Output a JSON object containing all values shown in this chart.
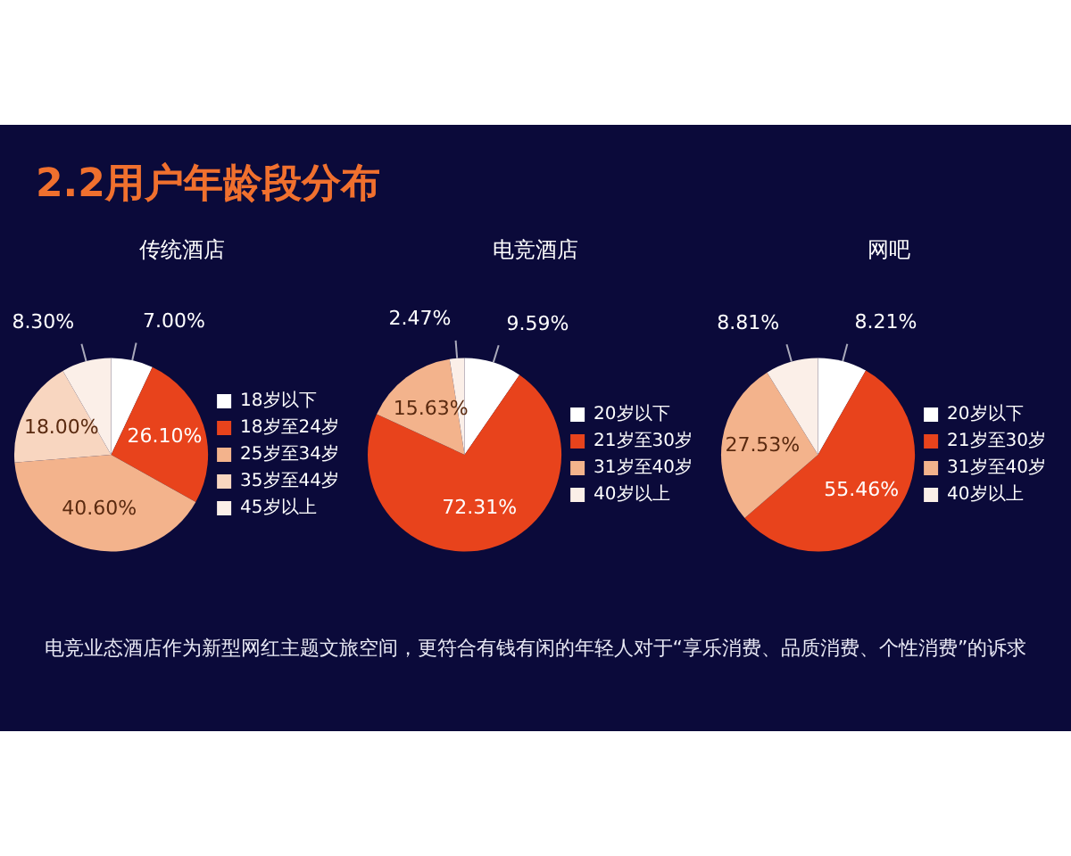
{
  "chart_data": [
    {
      "type": "pie",
      "title": "2.2用户年龄段分布",
      "subtitle": "传统酒店",
      "annotations": [
        "电竞业态酒店作为新型网红主题文旅空间，更符合有钱有闲的年轻人对于“享乐消费、品质消费、个性消费”的诉求"
      ],
      "categories": [
        "18岁以下",
        "18岁至24岁",
        "25岁至34岁",
        "35岁至44岁",
        "45岁以上"
      ],
      "values": [
        7.0,
        26.1,
        40.6,
        18.0,
        8.3
      ],
      "value_labels": [
        "7.00%",
        "26.10%",
        "40.60%",
        "18.00%",
        "8.30%"
      ],
      "colors": [
        "#ffffff",
        "#e8431c",
        "#f3b38c",
        "#f8d6c0",
        "#fbefe8"
      ],
      "legend": "right"
    },
    {
      "type": "pie",
      "subtitle": "电竞酒店",
      "categories": [
        "20岁以下",
        "21岁至30岁",
        "31岁至40岁",
        "40岁以上"
      ],
      "values": [
        9.59,
        72.31,
        15.63,
        2.47
      ],
      "value_labels": [
        "9.59%",
        "72.31%",
        "15.63%",
        "2.47%"
      ],
      "colors": [
        "#ffffff",
        "#e8431c",
        "#f3b38c",
        "#fbefe8"
      ],
      "legend": "right"
    },
    {
      "type": "pie",
      "subtitle": "网吧",
      "categories": [
        "20岁以下",
        "21岁至30岁",
        "31岁至40岁",
        "40岁以上"
      ],
      "values": [
        8.21,
        55.46,
        27.53,
        8.81
      ],
      "value_labels": [
        "8.21%",
        "55.46%",
        "27.53%",
        "8.81%"
      ],
      "colors": [
        "#ffffff",
        "#e8431c",
        "#f3b38c",
        "#fbefe8"
      ],
      "legend": "right"
    }
  ]
}
